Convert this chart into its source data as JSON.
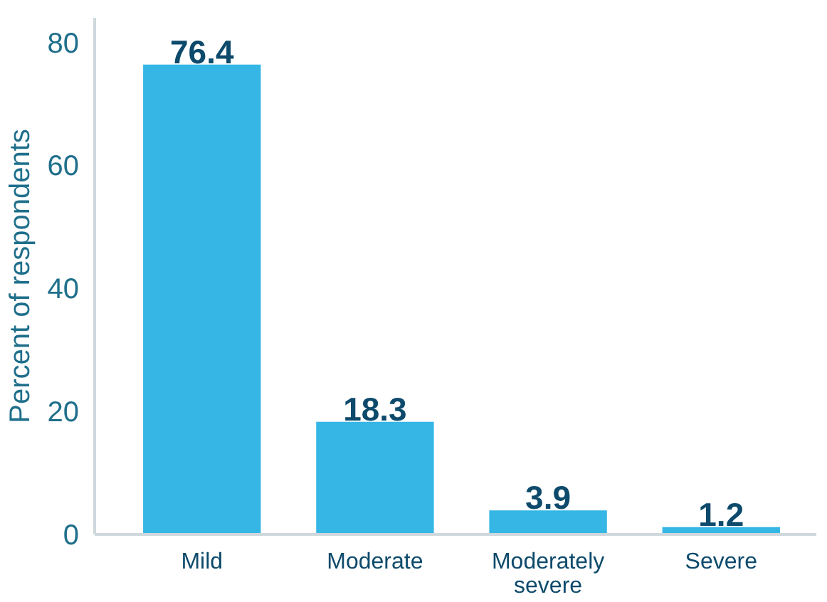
{
  "chart_data": {
    "type": "bar",
    "ylabel": "Percent of respondents",
    "categories": [
      "Mild",
      "Moderate",
      "Moderately severe",
      "Severe"
    ],
    "values": [
      76.4,
      18.3,
      3.9,
      1.2
    ],
    "color": "#35b6e5",
    "ylim": [
      0,
      84
    ],
    "yticks": [
      0,
      20,
      40,
      60,
      80
    ],
    "grid": false,
    "data_labels": true
  }
}
